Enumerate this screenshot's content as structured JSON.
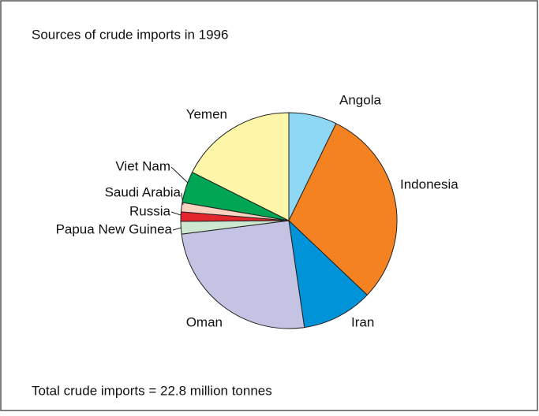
{
  "chart_data": {
    "type": "pie",
    "title": "Sources of crude imports in 1996",
    "note": "Total crude imports = 22.8 million tonnes",
    "categories": [
      "Angola",
      "Indonesia",
      "Iran",
      "Oman",
      "Papua New Guinea",
      "Russia",
      "Saudi Arabia",
      "Viet Nam",
      "Yemen"
    ],
    "values": [
      7.2,
      29.9,
      10.6,
      25.3,
      1.9,
      1.4,
      1.4,
      4.7,
      17.6
    ],
    "colors": [
      "#8fd8f5",
      "#f58220",
      "#0093d8",
      "#c5c3e3",
      "#cce8d0",
      "#e3262d",
      "#fbd2c0",
      "#00a651",
      "#fef6a8"
    ]
  }
}
